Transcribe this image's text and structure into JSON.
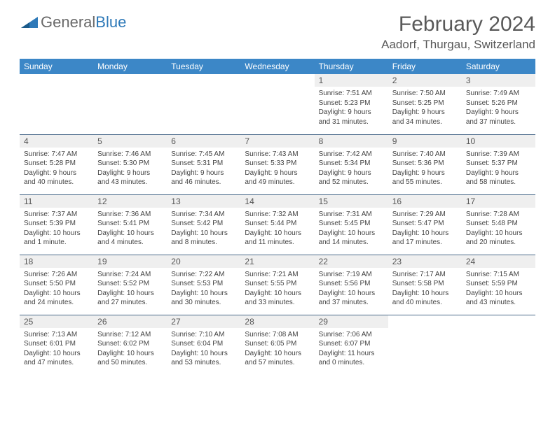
{
  "logo": {
    "general": "General",
    "blue": "Blue"
  },
  "title": "February 2024",
  "location": "Aadorf, Thurgau, Switzerland",
  "colors": {
    "header_bg": "#3c87c7",
    "header_text": "#ffffff",
    "daynum_bg": "#efefef",
    "row_border": "#4a6a8a",
    "title_color": "#595959",
    "logo_gray": "#6a6a6a",
    "logo_blue": "#2e79b8",
    "body_text": "#444444"
  },
  "day_headers": [
    "Sunday",
    "Monday",
    "Tuesday",
    "Wednesday",
    "Thursday",
    "Friday",
    "Saturday"
  ],
  "weeks": [
    [
      null,
      null,
      null,
      null,
      {
        "d": "1",
        "sr": "7:51 AM",
        "ss": "5:23 PM",
        "dl": "9 hours and 31 minutes."
      },
      {
        "d": "2",
        "sr": "7:50 AM",
        "ss": "5:25 PM",
        "dl": "9 hours and 34 minutes."
      },
      {
        "d": "3",
        "sr": "7:49 AM",
        "ss": "5:26 PM",
        "dl": "9 hours and 37 minutes."
      }
    ],
    [
      {
        "d": "4",
        "sr": "7:47 AM",
        "ss": "5:28 PM",
        "dl": "9 hours and 40 minutes."
      },
      {
        "d": "5",
        "sr": "7:46 AM",
        "ss": "5:30 PM",
        "dl": "9 hours and 43 minutes."
      },
      {
        "d": "6",
        "sr": "7:45 AM",
        "ss": "5:31 PM",
        "dl": "9 hours and 46 minutes."
      },
      {
        "d": "7",
        "sr": "7:43 AM",
        "ss": "5:33 PM",
        "dl": "9 hours and 49 minutes."
      },
      {
        "d": "8",
        "sr": "7:42 AM",
        "ss": "5:34 PM",
        "dl": "9 hours and 52 minutes."
      },
      {
        "d": "9",
        "sr": "7:40 AM",
        "ss": "5:36 PM",
        "dl": "9 hours and 55 minutes."
      },
      {
        "d": "10",
        "sr": "7:39 AM",
        "ss": "5:37 PM",
        "dl": "9 hours and 58 minutes."
      }
    ],
    [
      {
        "d": "11",
        "sr": "7:37 AM",
        "ss": "5:39 PM",
        "dl": "10 hours and 1 minute."
      },
      {
        "d": "12",
        "sr": "7:36 AM",
        "ss": "5:41 PM",
        "dl": "10 hours and 4 minutes."
      },
      {
        "d": "13",
        "sr": "7:34 AM",
        "ss": "5:42 PM",
        "dl": "10 hours and 8 minutes."
      },
      {
        "d": "14",
        "sr": "7:32 AM",
        "ss": "5:44 PM",
        "dl": "10 hours and 11 minutes."
      },
      {
        "d": "15",
        "sr": "7:31 AM",
        "ss": "5:45 PM",
        "dl": "10 hours and 14 minutes."
      },
      {
        "d": "16",
        "sr": "7:29 AM",
        "ss": "5:47 PM",
        "dl": "10 hours and 17 minutes."
      },
      {
        "d": "17",
        "sr": "7:28 AM",
        "ss": "5:48 PM",
        "dl": "10 hours and 20 minutes."
      }
    ],
    [
      {
        "d": "18",
        "sr": "7:26 AM",
        "ss": "5:50 PM",
        "dl": "10 hours and 24 minutes."
      },
      {
        "d": "19",
        "sr": "7:24 AM",
        "ss": "5:52 PM",
        "dl": "10 hours and 27 minutes."
      },
      {
        "d": "20",
        "sr": "7:22 AM",
        "ss": "5:53 PM",
        "dl": "10 hours and 30 minutes."
      },
      {
        "d": "21",
        "sr": "7:21 AM",
        "ss": "5:55 PM",
        "dl": "10 hours and 33 minutes."
      },
      {
        "d": "22",
        "sr": "7:19 AM",
        "ss": "5:56 PM",
        "dl": "10 hours and 37 minutes."
      },
      {
        "d": "23",
        "sr": "7:17 AM",
        "ss": "5:58 PM",
        "dl": "10 hours and 40 minutes."
      },
      {
        "d": "24",
        "sr": "7:15 AM",
        "ss": "5:59 PM",
        "dl": "10 hours and 43 minutes."
      }
    ],
    [
      {
        "d": "25",
        "sr": "7:13 AM",
        "ss": "6:01 PM",
        "dl": "10 hours and 47 minutes."
      },
      {
        "d": "26",
        "sr": "7:12 AM",
        "ss": "6:02 PM",
        "dl": "10 hours and 50 minutes."
      },
      {
        "d": "27",
        "sr": "7:10 AM",
        "ss": "6:04 PM",
        "dl": "10 hours and 53 minutes."
      },
      {
        "d": "28",
        "sr": "7:08 AM",
        "ss": "6:05 PM",
        "dl": "10 hours and 57 minutes."
      },
      {
        "d": "29",
        "sr": "7:06 AM",
        "ss": "6:07 PM",
        "dl": "11 hours and 0 minutes."
      },
      null,
      null
    ]
  ],
  "labels": {
    "sunrise": "Sunrise: ",
    "sunset": "Sunset: ",
    "daylight": "Daylight: "
  }
}
